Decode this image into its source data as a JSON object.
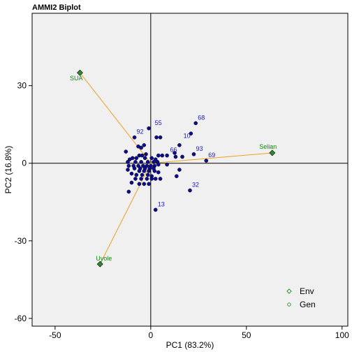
{
  "chart_data": {
    "type": "scatter",
    "title": "AMMI2 Biplot",
    "xlabel": "PC1 (83.2%)",
    "ylabel": "PC2 (16.8%)",
    "xlim": [
      -62,
      103
    ],
    "ylim": [
      -63,
      58
    ],
    "xticks": [
      -50,
      0,
      50,
      100
    ],
    "yticks": [
      -60,
      -30,
      0,
      30
    ],
    "grid": false,
    "legend_position": "bottom-right",
    "legend": [
      {
        "label": "Env",
        "marker": "diamond"
      },
      {
        "label": "Gen",
        "marker": "circle"
      }
    ],
    "colors": {
      "panel": "#f0f0f0",
      "gen_point": "#0d0d8c",
      "gen_label": "#1515c8",
      "env_point": "#2e8b2e",
      "env_label": "#118811",
      "vector": "#f0a020"
    },
    "environments": [
      {
        "name": "SUA",
        "x": -37,
        "y": 35
      },
      {
        "name": "Selian",
        "x": 63.5,
        "y": 4
      },
      {
        "name": "Uyole",
        "x": -26.5,
        "y": -39
      }
    ],
    "labeled_genotypes": [
      {
        "label": "55",
        "x": 1,
        "y": 13.5
      },
      {
        "label": "68",
        "x": 23.5,
        "y": 15.5
      },
      {
        "label": "92",
        "x": -8.5,
        "y": 10
      },
      {
        "label": "10",
        "x": 16,
        "y": 8.5
      },
      {
        "label": "66",
        "x": 9,
        "y": 3
      },
      {
        "label": "93",
        "x": 22.5,
        "y": 3.5
      },
      {
        "label": "69",
        "x": 29,
        "y": 1
      },
      {
        "label": "32",
        "x": 20.5,
        "y": -10.5
      },
      {
        "label": "13",
        "x": 2.5,
        "y": -18
      }
    ],
    "genotypes": [
      [
        -1,
        13.5
      ],
      [
        23.5,
        15.5
      ],
      [
        21,
        11.5
      ],
      [
        -8.5,
        10
      ],
      [
        3,
        10
      ],
      [
        5,
        10
      ],
      [
        -3.5,
        7
      ],
      [
        -6.5,
        6.5
      ],
      [
        -5,
        6
      ],
      [
        15,
        7
      ],
      [
        22.5,
        3.5
      ],
      [
        29,
        1
      ],
      [
        8.5,
        3
      ],
      [
        -2.5,
        3.5
      ],
      [
        -4.5,
        3
      ],
      [
        -6,
        3
      ],
      [
        4,
        3
      ],
      [
        6,
        3
      ],
      [
        13,
        2.5
      ],
      [
        16.5,
        2.5
      ],
      [
        -9.5,
        2
      ],
      [
        -11,
        1.5
      ],
      [
        -7.5,
        2
      ],
      [
        -3,
        2
      ],
      [
        0.5,
        2
      ],
      [
        2.5,
        1.5
      ],
      [
        -12,
        0.5
      ],
      [
        -8,
        0.5
      ],
      [
        -5,
        0.5
      ],
      [
        -1.5,
        0.5
      ],
      [
        1.5,
        0.5
      ],
      [
        3.5,
        0.5
      ],
      [
        -11.5,
        -1
      ],
      [
        -9,
        -1
      ],
      [
        -6.5,
        -1
      ],
      [
        -4,
        -1
      ],
      [
        -2,
        -1
      ],
      [
        0,
        -1
      ],
      [
        2,
        -1
      ],
      [
        4,
        -0.5
      ],
      [
        8.5,
        -0.5
      ],
      [
        -8.5,
        -2
      ],
      [
        -5.5,
        -2
      ],
      [
        -3,
        -2
      ],
      [
        -0.5,
        -2
      ],
      [
        1.5,
        -2
      ],
      [
        -12,
        -2.5
      ],
      [
        15,
        -2.5
      ],
      [
        -6,
        -3
      ],
      [
        -3.5,
        -3
      ],
      [
        -1,
        -3
      ],
      [
        2,
        -3
      ],
      [
        -10,
        -4
      ],
      [
        -7.5,
        -4.5
      ],
      [
        -4.5,
        -4.5
      ],
      [
        -1.5,
        -4.5
      ],
      [
        0.5,
        -5
      ],
      [
        13.5,
        -5
      ],
      [
        -8,
        -6
      ],
      [
        -5,
        -6
      ],
      [
        -2,
        -6
      ],
      [
        0.5,
        -6
      ],
      [
        2.5,
        -6
      ],
      [
        5,
        -6
      ],
      [
        -10,
        -7.5
      ],
      [
        -6,
        -8
      ],
      [
        -3.5,
        -8
      ],
      [
        -1,
        -8
      ],
      [
        -11.5,
        -11
      ],
      [
        20.5,
        -10.5
      ],
      [
        2.5,
        -18
      ],
      [
        12.5,
        4
      ],
      [
        -13,
        4.5
      ],
      [
        4,
        -3.5
      ]
    ]
  }
}
